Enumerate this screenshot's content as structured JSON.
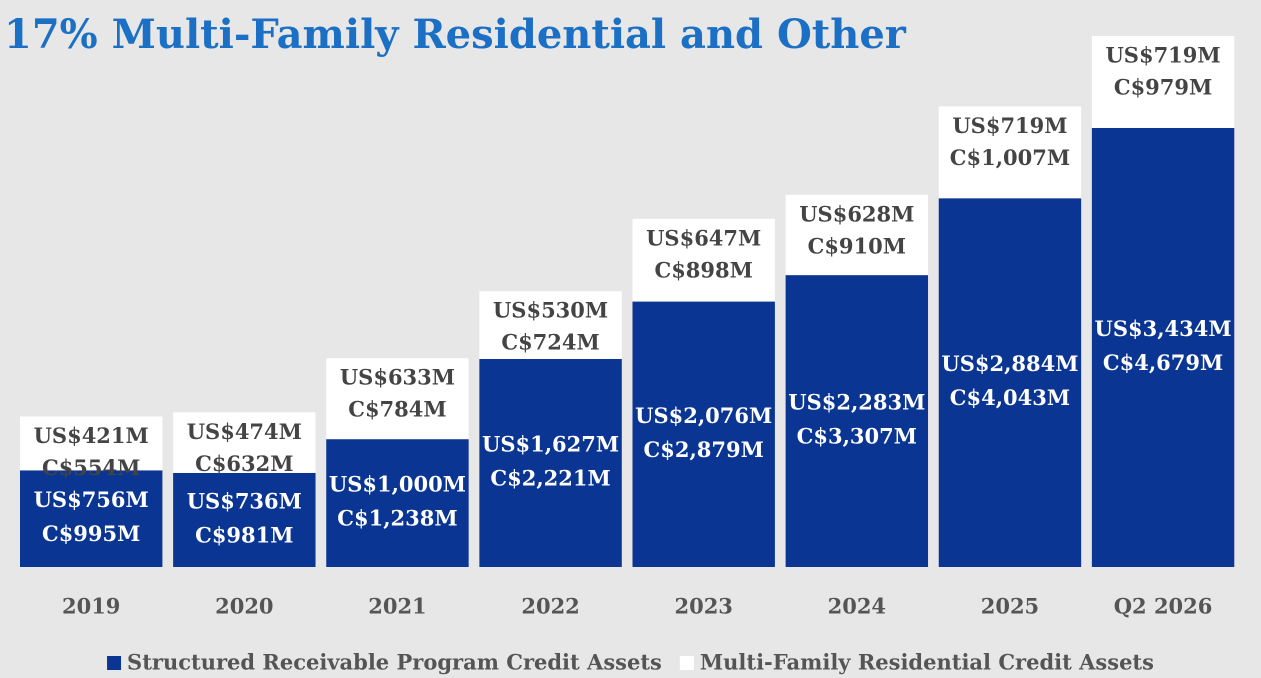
{
  "chart_data": {
    "type": "stacked-bar",
    "title": "17% Multi-Family Residential and Other",
    "categories": [
      "2019",
      "2020",
      "2021",
      "2022",
      "2023",
      "2024",
      "2025",
      "Q2 2026"
    ],
    "series": [
      {
        "name": "Structured Receivable Program Credit Assets",
        "color": "#0b3592",
        "values": [
          756,
          736,
          1000,
          1627,
          2076,
          2283,
          2884,
          3434
        ],
        "value_labels": [
          "US$756M",
          "US$736M",
          "US$1,000M",
          "US$1,627M",
          "US$2,076M",
          "US$2,283M",
          "US$2,884M",
          "US$3,434M"
        ],
        "values_cad": [
          995,
          981,
          1238,
          2221,
          2879,
          3307,
          4043,
          4679
        ],
        "value_labels_cad": [
          "C$995M",
          "C$981M",
          "C$1,238M",
          "C$2,221M",
          "C$2,879M",
          "C$3,307M",
          "C$4,043M",
          "C$4,679M"
        ]
      },
      {
        "name": "Multi-Family Residential Credit Assets",
        "color": "#ffffff",
        "values": [
          421,
          474,
          633,
          530,
          647,
          628,
          719,
          719
        ],
        "value_labels": [
          "US$421M",
          "US$474M",
          "US$633M",
          "US$530M",
          "US$647M",
          "US$628M",
          "US$719M",
          "US$719M"
        ],
        "values_cad": [
          554,
          632,
          784,
          724,
          898,
          910,
          1007,
          979
        ],
        "value_labels_cad": [
          "C$554M",
          "C$632M",
          "C$784M",
          "C$724M",
          "C$898M",
          "C$910M",
          "C$1,007M",
          "C$979M"
        ]
      }
    ]
  }
}
